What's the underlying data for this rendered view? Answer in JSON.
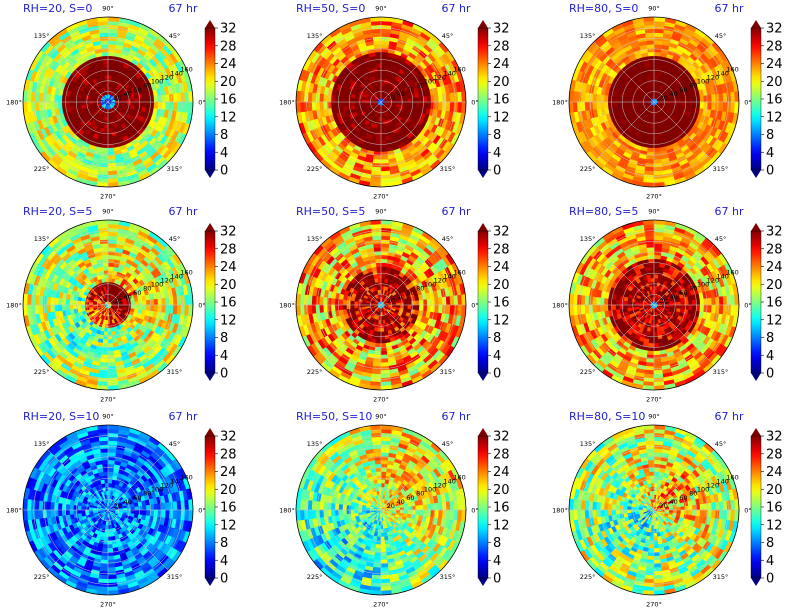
{
  "figure": {
    "angle_tick_labels": [
      "90°",
      "45°",
      "0°",
      "315°",
      "270°",
      "225°",
      "180°",
      "135°"
    ],
    "radial_tick_labels": [
      "20",
      "40",
      "60",
      "80",
      "100",
      "120",
      "140",
      "160"
    ],
    "colorbar_tick_labels": [
      "0",
      "4",
      "8",
      "12",
      "16",
      "20",
      "24",
      "28",
      "32"
    ],
    "colormap": "jet",
    "colorbar_extends": "both",
    "title_color": "#1f1fd0"
  },
  "chart_data": [
    {
      "type": "heatmap",
      "projection": "polar",
      "title_left": "RH=20, S=0",
      "title_right": "67 hr",
      "r_range": [
        0,
        160
      ],
      "theta_range_deg": [
        0,
        360
      ],
      "color_range": [
        0,
        32
      ],
      "pattern": {
        "eye_radius": 16,
        "eye_value": 2,
        "core_radius": 85,
        "core_value": 34,
        "outer_value": 18,
        "noise": 5
      }
    },
    {
      "type": "heatmap",
      "projection": "polar",
      "title_left": "RH=50, S=0",
      "title_right": "67 hr",
      "r_range": [
        0,
        160
      ],
      "theta_range_deg": [
        0,
        360
      ],
      "color_range": [
        0,
        32
      ],
      "pattern": {
        "eye_radius": 10,
        "eye_value": 2,
        "core_radius": 95,
        "core_value": 34,
        "outer_value": 23,
        "noise": 5
      }
    },
    {
      "type": "heatmap",
      "projection": "polar",
      "title_left": "RH=80, S=0",
      "title_right": "67 hr",
      "r_range": [
        0,
        160
      ],
      "theta_range_deg": [
        0,
        360
      ],
      "color_range": [
        0,
        32
      ],
      "pattern": {
        "eye_radius": 7,
        "eye_value": 3,
        "core_radius": 90,
        "core_value": 34,
        "outer_value": 23,
        "noise": 3
      }
    },
    {
      "type": "heatmap",
      "projection": "polar",
      "title_left": "RH=20, S=5",
      "title_right": "67 hr",
      "r_range": [
        0,
        160
      ],
      "theta_range_deg": [
        0,
        360
      ],
      "color_range": [
        0,
        32
      ],
      "pattern": {
        "eye_radius": 8,
        "eye_value": 10,
        "core_radius": 45,
        "core_value": 30,
        "outer_value": 18,
        "noise": 6,
        "shear_bias": "north-east"
      }
    },
    {
      "type": "heatmap",
      "projection": "polar",
      "title_left": "RH=50, S=5",
      "title_right": "67 hr",
      "r_range": [
        0,
        160
      ],
      "theta_range_deg": [
        0,
        360
      ],
      "color_range": [
        0,
        32
      ],
      "pattern": {
        "eye_radius": 8,
        "eye_value": 8,
        "core_radius": 70,
        "core_value": 30,
        "outer_value": 22,
        "noise": 7
      }
    },
    {
      "type": "heatmap",
      "projection": "polar",
      "title_left": "RH=80, S=5",
      "title_right": "67 hr",
      "r_range": [
        0,
        160
      ],
      "theta_range_deg": [
        0,
        360
      ],
      "color_range": [
        0,
        32
      ],
      "pattern": {
        "eye_radius": 8,
        "eye_value": 4,
        "core_radius": 90,
        "core_value": 31,
        "outer_value": 22,
        "noise": 6
      }
    },
    {
      "type": "heatmap",
      "projection": "polar",
      "title_left": "RH=20, S=10",
      "title_right": "67 hr",
      "r_range": [
        0,
        160
      ],
      "theta_range_deg": [
        0,
        360
      ],
      "color_range": [
        0,
        32
      ],
      "pattern": {
        "eye_radius": 0,
        "eye_value": 6,
        "core_radius": 0,
        "core_value": 9,
        "outer_value": 8,
        "noise": 5
      }
    },
    {
      "type": "heatmap",
      "projection": "polar",
      "title_left": "RH=50, S=10",
      "title_right": "67 hr",
      "r_range": [
        0,
        160
      ],
      "theta_range_deg": [
        0,
        360
      ],
      "color_range": [
        0,
        32
      ],
      "pattern": {
        "eye_radius": 0,
        "eye_value": 10,
        "core_radius": 0,
        "core_value": 12,
        "outer_value": 17,
        "noise": 6,
        "shear_bias": "south-west"
      }
    },
    {
      "type": "heatmap",
      "projection": "polar",
      "title_left": "RH=80, S=10",
      "title_right": "67 hr",
      "r_range": [
        0,
        160
      ],
      "theta_range_deg": [
        0,
        360
      ],
      "color_range": [
        0,
        32
      ],
      "pattern": {
        "eye_radius": 0,
        "eye_value": 14,
        "core_radius": 0,
        "core_value": 16,
        "outer_value": 18,
        "noise": 7,
        "shear_bias": "north-east"
      }
    }
  ]
}
